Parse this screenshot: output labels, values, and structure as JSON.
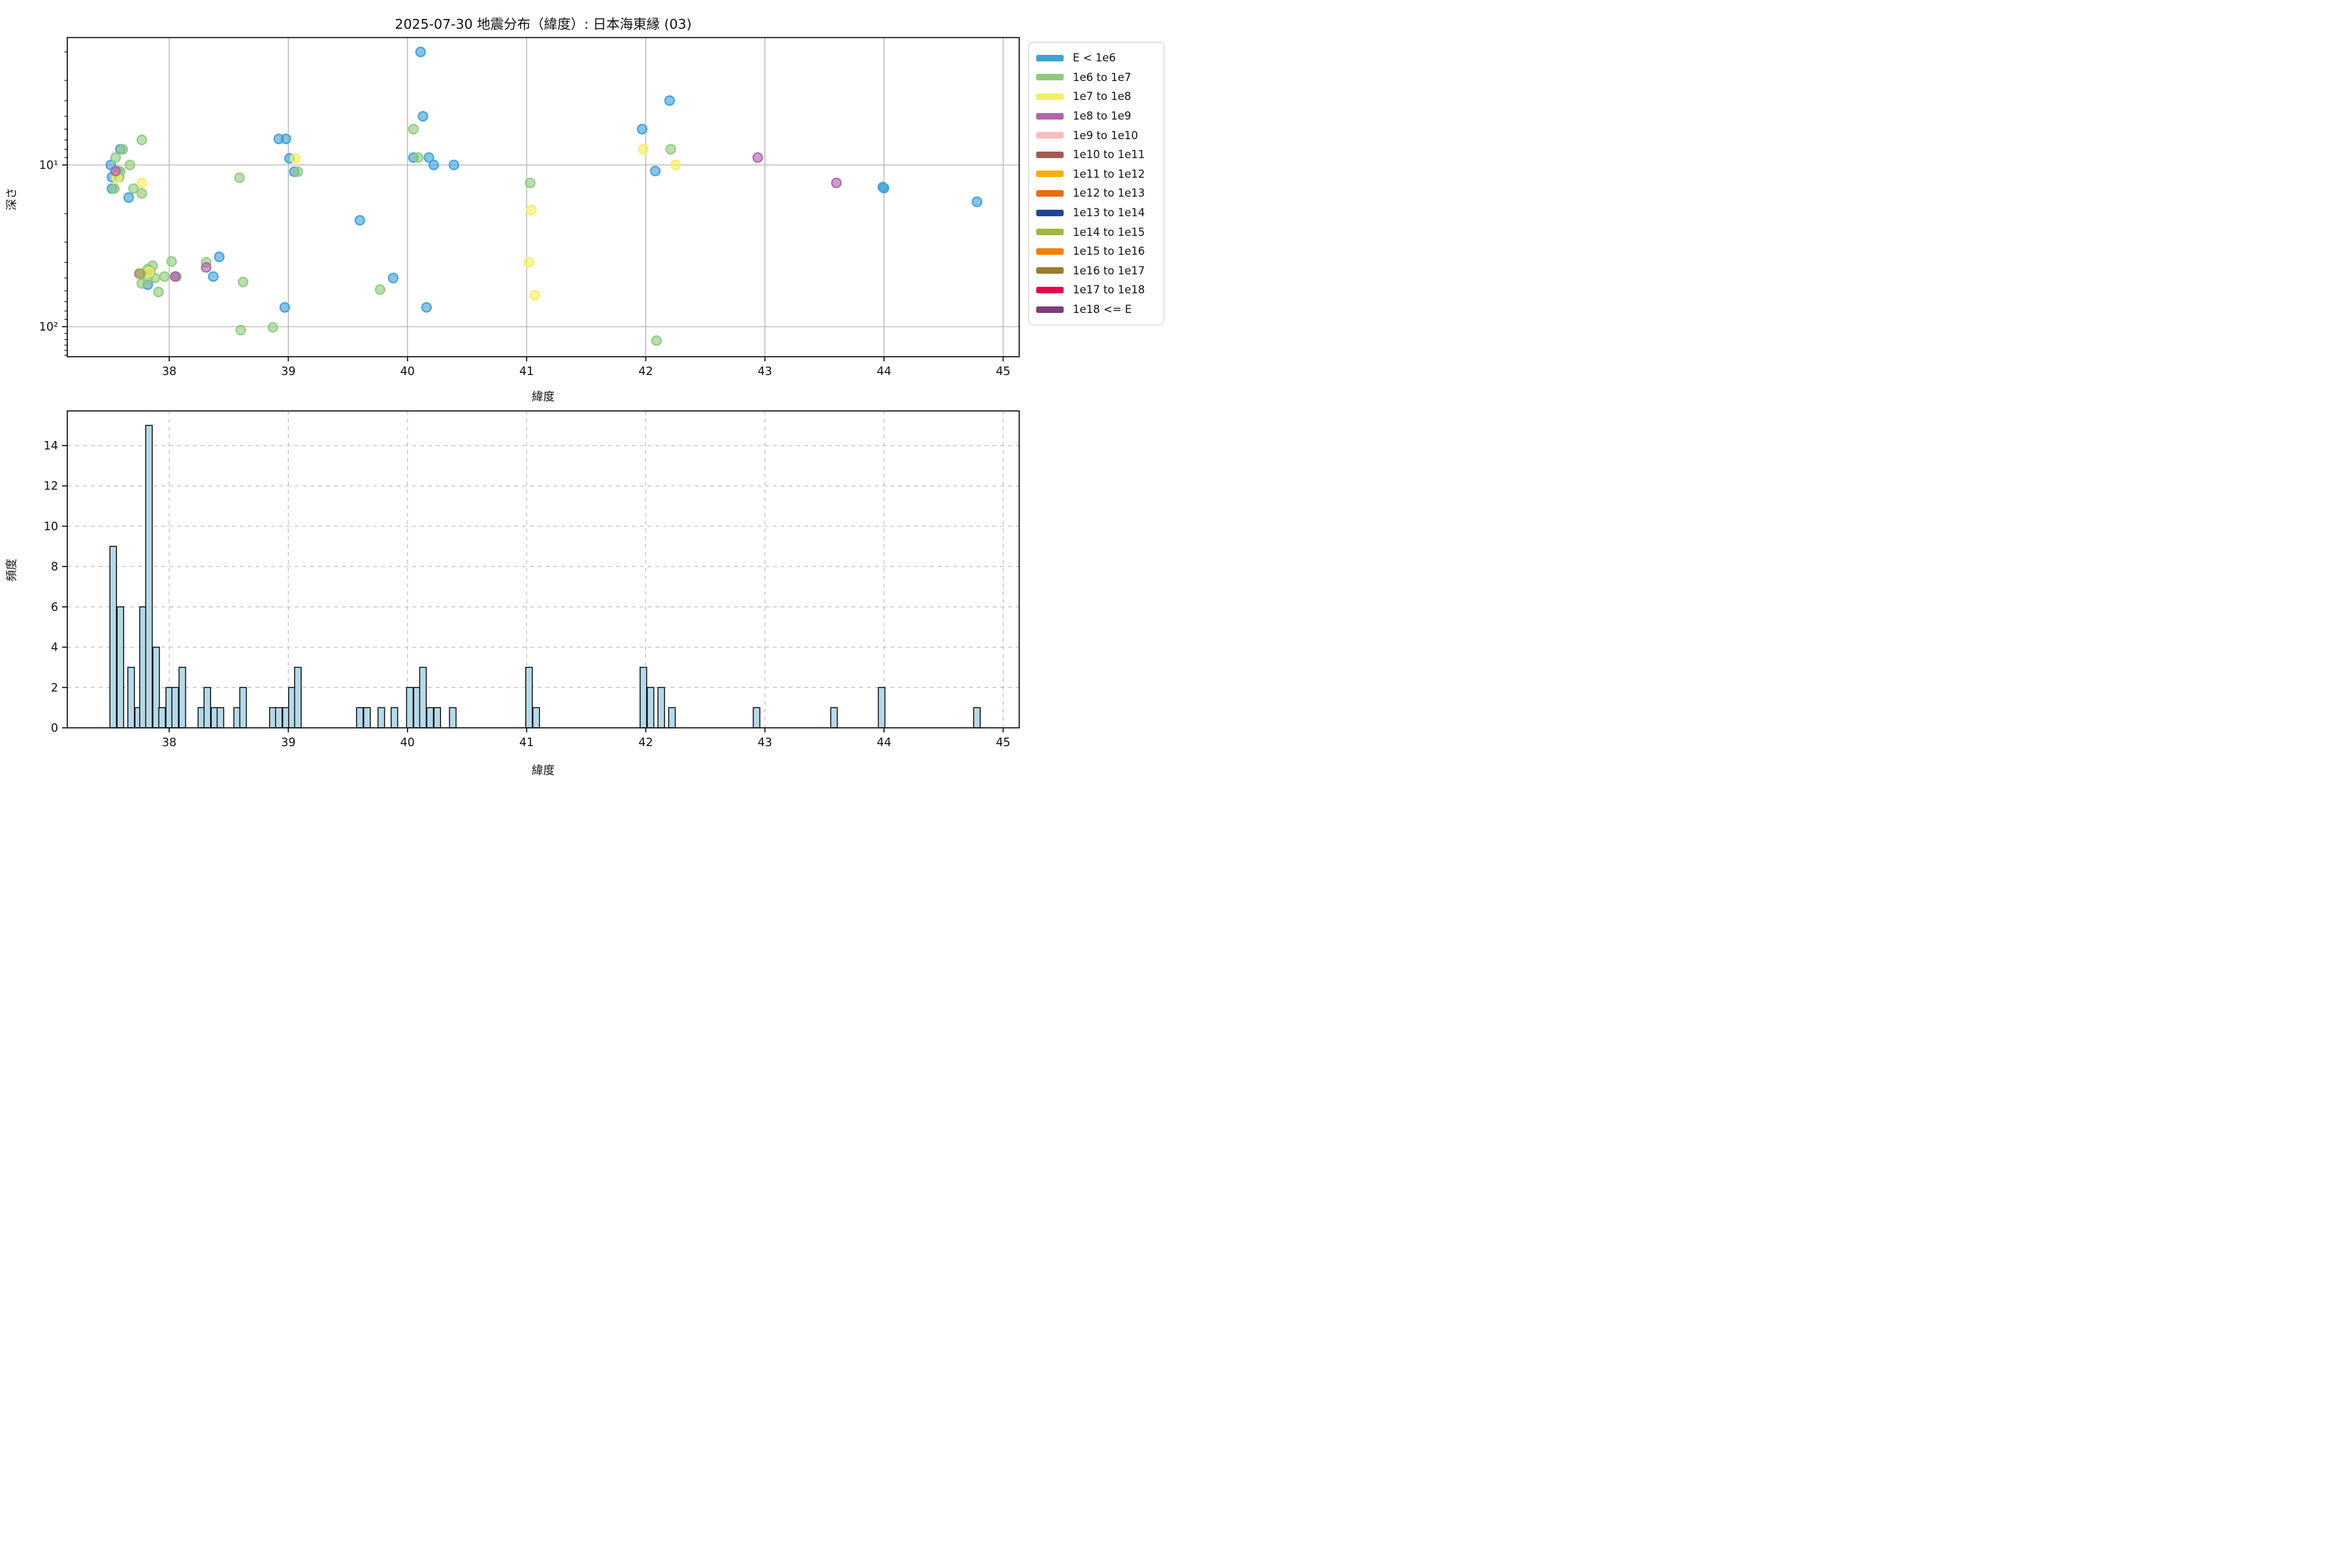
{
  "figure_title": "2025-07-30 地震分布（緯度）: 日本海東縁 (03)",
  "legend": {
    "entries": [
      {
        "label": "E < 1e6",
        "color": "#42a0d9"
      },
      {
        "label": "1e6 to 1e7",
        "color": "#92c97e"
      },
      {
        "label": "1e7 to 1e8",
        "color": "#f6ee62"
      },
      {
        "label": "1e8 to 1e9",
        "color": "#b263a9"
      },
      {
        "label": "1e9 to 1e10",
        "color": "#f6bcbe"
      },
      {
        "label": "1e10 to 1e11",
        "color": "#a25b53"
      },
      {
        "label": "1e11 to 1e12",
        "color": "#f6ad0e"
      },
      {
        "label": "1e12 to 1e13",
        "color": "#ec6c0c"
      },
      {
        "label": "1e13 to 1e14",
        "color": "#1f4599"
      },
      {
        "label": "1e14 to 1e15",
        "color": "#a0b545"
      },
      {
        "label": "1e15 to 1e16",
        "color": "#f28109"
      },
      {
        "label": "1e16 to 1e17",
        "color": "#9c7c2c"
      },
      {
        "label": "1e17 to 1e18",
        "color": "#e5074e"
      },
      {
        "label": "1e18 <= E",
        "color": "#7c3d7c"
      }
    ]
  },
  "chart_data": [
    {
      "type": "scatter",
      "title": "2025-07-30 地震分布（緯度）: 日本海東縁 (03)",
      "xlabel": "緯度",
      "ylabel": "深さ",
      "xlim": [
        37.15,
        45.13
      ],
      "xticks": [
        38,
        39,
        40,
        41,
        42,
        43,
        44,
        45
      ],
      "y_axis": {
        "scale": "log",
        "inverted": true,
        "min_depth": 1.65,
        "max_depth": 153,
        "major_ticks": [
          10,
          100
        ],
        "major_tick_labels": [
          "10¹",
          "10²"
        ],
        "minor_ticks": [
          2,
          3,
          4,
          5,
          6,
          7,
          8,
          9,
          20,
          30,
          40,
          50,
          60,
          70,
          80,
          90,
          110,
          120,
          130,
          140,
          150
        ]
      },
      "grid": "solid",
      "legend_position": "outside-right",
      "series": [
        {
          "name": "E < 1e6",
          "color": "#42a0d9",
          "points": [
            [
              37.59,
              8.0
            ],
            [
              37.51,
              10.0
            ],
            [
              37.52,
              11.9
            ],
            [
              37.52,
              14.0
            ],
            [
              37.66,
              15.9
            ],
            [
              37.82,
              55
            ],
            [
              38.05,
              49
            ],
            [
              38.37,
              49
            ],
            [
              38.42,
              37
            ],
            [
              38.92,
              6.9
            ],
            [
              38.98,
              6.9
            ],
            [
              38.97,
              76
            ],
            [
              39.01,
              9.1
            ],
            [
              39.05,
              11.0
            ],
            [
              39.6,
              22
            ],
            [
              39.88,
              50
            ],
            [
              40.11,
              2.0
            ],
            [
              40.13,
              5.0
            ],
            [
              40.05,
              9.0
            ],
            [
              40.18,
              9.0
            ],
            [
              40.22,
              10.0
            ],
            [
              40.39,
              10.0
            ],
            [
              40.16,
              76
            ],
            [
              41.97,
              6.0
            ],
            [
              42.2,
              4.0
            ],
            [
              42.08,
              10.9
            ],
            [
              43.99,
              13.7
            ],
            [
              44.0,
              13.9
            ],
            [
              44.78,
              16.9
            ]
          ]
        },
        {
          "name": "1e6 to 1e7",
          "color": "#92c97e",
          "points": [
            [
              37.77,
              7.0
            ],
            [
              37.61,
              8.0
            ],
            [
              37.55,
              9.0
            ],
            [
              37.67,
              10.0
            ],
            [
              37.57,
              10.9
            ],
            [
              37.59,
              11.0
            ],
            [
              37.58,
              11.9
            ],
            [
              37.54,
              14.0
            ],
            [
              37.7,
              14.0
            ],
            [
              37.77,
              15.0
            ],
            [
              37.82,
              44
            ],
            [
              37.83,
              45
            ],
            [
              37.84,
              46
            ],
            [
              37.86,
              42
            ],
            [
              37.88,
              50
            ],
            [
              37.82,
              51
            ],
            [
              37.77,
              54
            ],
            [
              37.91,
              61
            ],
            [
              37.96,
              49
            ],
            [
              38.02,
              39.5
            ],
            [
              38.06,
              49
            ],
            [
              38.31,
              40
            ],
            [
              38.62,
              53
            ],
            [
              38.59,
              12.0
            ],
            [
              38.6,
              105
            ],
            [
              38.87,
              101
            ],
            [
              39.08,
              11.0
            ],
            [
              39.77,
              59
            ],
            [
              40.05,
              6.0
            ],
            [
              40.09,
              9.0
            ],
            [
              41.03,
              12.9
            ],
            [
              42.21,
              8.0
            ],
            [
              42.09,
              122
            ]
          ]
        },
        {
          "name": "1e7 to 1e8",
          "color": "#f6ee62",
          "points": [
            [
              37.56,
              12.0
            ],
            [
              37.77,
              12.9
            ],
            [
              37.83,
              46
            ],
            [
              39.06,
              9.1
            ],
            [
              41.04,
              19
            ],
            [
              41.02,
              40
            ],
            [
              41.07,
              64
            ],
            [
              41.98,
              8.0
            ],
            [
              42.25,
              10.0
            ]
          ]
        },
        {
          "name": "1e8 to 1e9",
          "color": "#b263a9",
          "points": [
            [
              37.55,
              10.9
            ],
            [
              37.75,
              47
            ],
            [
              38.05,
              49
            ],
            [
              38.31,
              43
            ],
            [
              42.94,
              9.0
            ],
            [
              43.6,
              12.9
            ]
          ]
        },
        {
          "name": "1e14 to 1e15",
          "color": "#a0b545",
          "points": [
            [
              37.76,
              47
            ]
          ]
        }
      ]
    },
    {
      "type": "histogram",
      "xlabel": "緯度",
      "ylabel": "頻度",
      "xlim": [
        37.15,
        45.13
      ],
      "ylim": [
        0,
        15.7
      ],
      "xticks": [
        38,
        39,
        40,
        41,
        42,
        43,
        44,
        45
      ],
      "yticks": [
        0,
        2,
        4,
        6,
        8,
        10,
        12,
        14
      ],
      "grid": "dashed",
      "bar_color": "#b5d9e9",
      "bar_edge_color": "#000000",
      "bar_width_lat": 0.055,
      "bars": [
        [
          37.53,
          9
        ],
        [
          37.59,
          6
        ],
        [
          37.68,
          3
        ],
        [
          37.74,
          1
        ],
        [
          37.78,
          6
        ],
        [
          37.83,
          15
        ],
        [
          37.89,
          4
        ],
        [
          37.94,
          1
        ],
        [
          38.0,
          2
        ],
        [
          38.05,
          2
        ],
        [
          38.11,
          3
        ],
        [
          38.27,
          1
        ],
        [
          38.32,
          2
        ],
        [
          38.38,
          1
        ],
        [
          38.43,
          1
        ],
        [
          38.57,
          1
        ],
        [
          38.62,
          2
        ],
        [
          38.87,
          1
        ],
        [
          38.92,
          1
        ],
        [
          38.98,
          1
        ],
        [
          39.03,
          2
        ],
        [
          39.08,
          3
        ],
        [
          39.6,
          1
        ],
        [
          39.66,
          1
        ],
        [
          39.78,
          1
        ],
        [
          39.89,
          1
        ],
        [
          40.02,
          2
        ],
        [
          40.08,
          2
        ],
        [
          40.13,
          3
        ],
        [
          40.19,
          1
        ],
        [
          40.25,
          1
        ],
        [
          40.38,
          1
        ],
        [
          41.02,
          3
        ],
        [
          41.08,
          1
        ],
        [
          41.98,
          3
        ],
        [
          42.04,
          2
        ],
        [
          42.13,
          2
        ],
        [
          42.22,
          1
        ],
        [
          42.93,
          1
        ],
        [
          43.58,
          1
        ],
        [
          43.98,
          2
        ],
        [
          44.78,
          1
        ]
      ]
    }
  ]
}
